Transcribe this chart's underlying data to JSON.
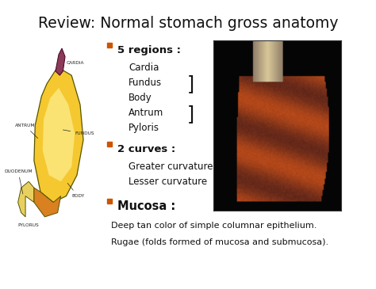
{
  "title": "Review: Normal stomach gross anatomy",
  "title_fontsize": 13.5,
  "bg_color": "#ffffff",
  "bullet_color": "#cc5500",
  "bullet1_header": "5 regions :",
  "bullet1_items": [
    "Cardia",
    "Fundus",
    "Body",
    "Antrum",
    "Pyloris"
  ],
  "bullet2_header": "2 curves :",
  "bullet2_items": [
    "Greater curvature",
    "Lesser curvature"
  ],
  "bullet3_header": "Mucosa :",
  "bullet3_text1": "Deep tan color of simple columnar epithelium.",
  "bullet3_text2": "Rugae (folds formed of mucosa and submucosa).",
  "header_fontsize": 9.5,
  "body_fontsize": 8.5,
  "mucosa_fontsize": 10.5,
  "small_fontsize": 8.0,
  "text_color": "#111111",
  "white": "#ffffff",
  "stomach_label_color": "#222222",
  "stomach_label_fs": 4.2,
  "stomach_body_color": "#f5c830",
  "stomach_highlight": "#fce880",
  "stomach_antrum": "#d98020",
  "stomach_duodenum": "#e8d060",
  "stomach_cardia": "#8b3a5a",
  "stomach_outline": "#555500"
}
